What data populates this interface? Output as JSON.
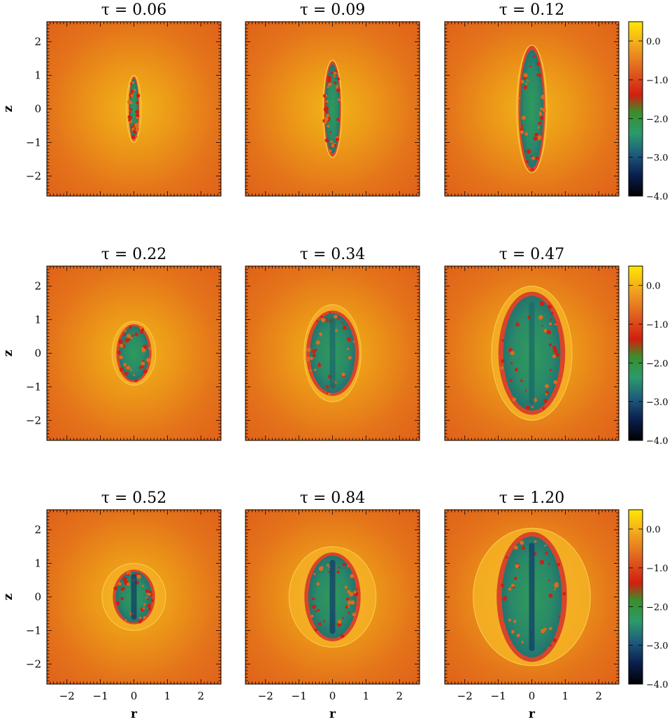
{
  "chart_data": {
    "type": "heatmap",
    "xlabel": "r",
    "ylabel": "z",
    "xlim": [
      -2.6,
      2.6
    ],
    "ylim": [
      -2.6,
      2.6
    ],
    "ticks": [
      -2,
      -1,
      0,
      1,
      2
    ],
    "tick_labels": [
      "−2",
      "−1",
      "0",
      "1",
      "2"
    ],
    "colorbar": {
      "range": [
        -4.0,
        0.5
      ],
      "tick_values": [
        0.0,
        -1.0,
        -2.0,
        -3.0,
        -4.0
      ],
      "tick_labels": [
        "0.0",
        "−1.0",
        "−2.0",
        "−3.0",
        "−4.0"
      ],
      "colors": [
        "#000000",
        "#0a1f4e",
        "#1d5b7c",
        "#2a9a6c",
        "#3a8f2a",
        "#d11f0f",
        "#e0601f",
        "#f0a320",
        "#ffe800"
      ]
    },
    "panels": [
      {
        "label": "τ = 0.06",
        "tau": 0.06,
        "cavity_half_width": 0.15,
        "cavity_half_height": 0.95,
        "shell_half_width": 0.22,
        "shell_half_height": 1.0
      },
      {
        "label": "τ = 0.09",
        "tau": 0.09,
        "cavity_half_width": 0.24,
        "cavity_half_height": 1.4,
        "shell_half_width": 0.28,
        "shell_half_height": 1.45
      },
      {
        "label": "τ = 0.12",
        "tau": 0.12,
        "cavity_half_width": 0.38,
        "cavity_half_height": 1.85,
        "shell_half_width": 0.45,
        "shell_half_height": 1.9
      },
      {
        "label": "τ = 0.22",
        "tau": 0.22,
        "cavity_half_width": 0.5,
        "cavity_half_height": 0.85,
        "shell_half_width": 0.65,
        "shell_half_height": 0.95
      },
      {
        "label": "τ = 0.34",
        "tau": 0.34,
        "cavity_half_width": 0.75,
        "cavity_half_height": 1.25,
        "shell_half_width": 0.85,
        "shell_half_height": 1.45
      },
      {
        "label": "τ = 0.47",
        "tau": 0.47,
        "cavity_half_width": 0.95,
        "cavity_half_height": 1.8,
        "shell_half_width": 1.2,
        "shell_half_height": 2.0
      },
      {
        "label": "τ = 0.52",
        "tau": 0.52,
        "cavity_half_width": 0.6,
        "cavity_half_height": 0.8,
        "shell_half_width": 0.95,
        "shell_half_height": 1.0
      },
      {
        "label": "τ = 0.84",
        "tau": 0.84,
        "cavity_half_width": 0.8,
        "cavity_half_height": 1.3,
        "shell_half_width": 1.3,
        "shell_half_height": 1.5
      },
      {
        "label": "τ = 1.20",
        "tau": 1.2,
        "cavity_half_width": 1.0,
        "cavity_half_height": 1.9,
        "shell_half_width": 1.75,
        "shell_half_height": 2.05
      }
    ]
  }
}
